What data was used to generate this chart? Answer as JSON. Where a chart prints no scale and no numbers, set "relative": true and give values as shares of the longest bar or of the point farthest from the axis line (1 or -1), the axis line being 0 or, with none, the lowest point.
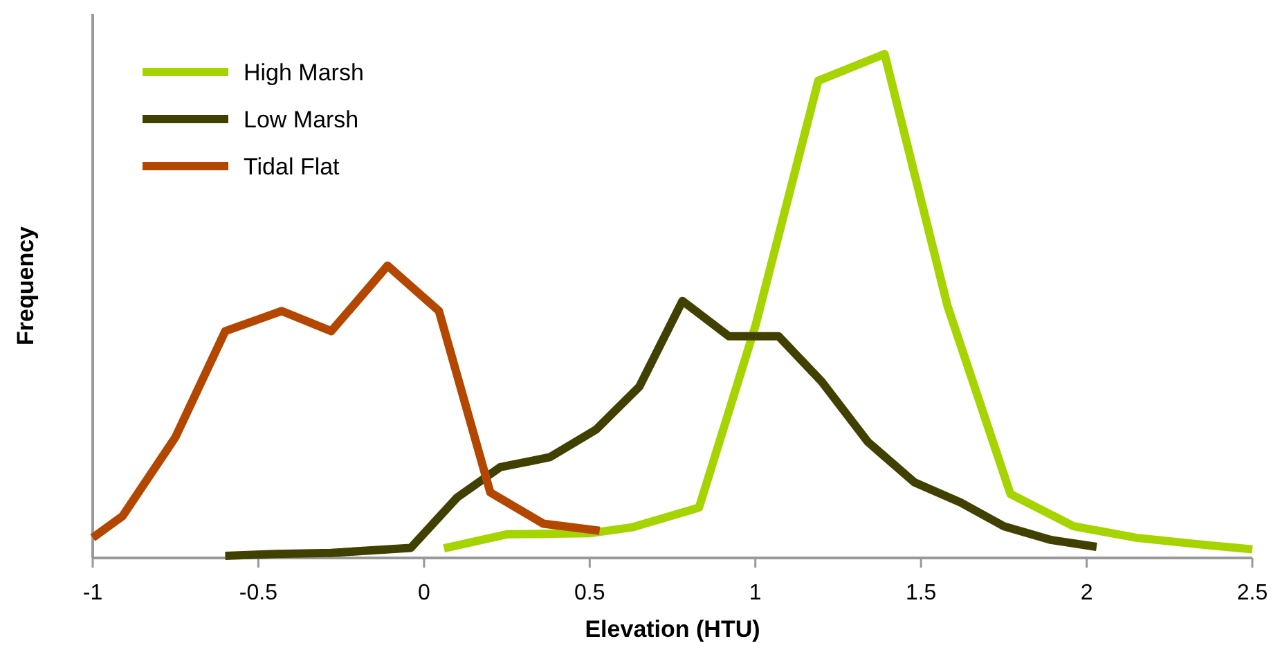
{
  "chart_data": {
    "type": "line",
    "xlabel": "Elevation (HTU)",
    "ylabel": "Frequency",
    "relative": true,
    "xlim": [
      -1,
      2.5
    ],
    "xticks": [
      -1,
      -0.5,
      0,
      0.5,
      1,
      1.5,
      2,
      2.5
    ],
    "legend": "top left",
    "grid": false,
    "marker": "none",
    "line_style": "solid",
    "series": [
      {
        "name": "High Marsh",
        "color": "#a6d400",
        "x": [
          0.06,
          0.25,
          0.5,
          0.63,
          0.83,
          1.0,
          1.19,
          1.39,
          1.58,
          1.77,
          1.96,
          2.15,
          2.34,
          2.5
        ],
        "values": [
          0.019,
          0.047,
          0.049,
          0.061,
          0.1,
          0.46,
          0.947,
          1,
          0.5,
          0.127,
          0.063,
          0.04,
          0.027,
          0.017
        ]
      },
      {
        "name": "Low Marsh",
        "color": "#404000",
        "x": [
          -0.6,
          -0.45,
          -0.28,
          -0.04,
          0.1,
          0.23,
          0.38,
          0.52,
          0.65,
          0.78,
          0.92,
          1.07,
          1.2,
          1.34,
          1.48,
          1.62,
          1.75,
          1.89,
          2.03
        ],
        "values": [
          0.004,
          0.008,
          0.01,
          0.02,
          0.12,
          0.18,
          0.2,
          0.255,
          0.34,
          0.51,
          0.44,
          0.44,
          0.35,
          0.23,
          0.15,
          0.11,
          0.063,
          0.036,
          0.022
        ]
      },
      {
        "name": "Tidal Flat",
        "color": "#b34700",
        "x": [
          -1,
          -0.91,
          -0.75,
          -0.6,
          -0.43,
          -0.28,
          -0.11,
          0.045,
          0.2,
          0.36,
          0.53
        ],
        "values": [
          0.04,
          0.083,
          0.24,
          0.45,
          0.49,
          0.45,
          0.58,
          0.49,
          0.13,
          0.068,
          0.054
        ]
      }
    ]
  }
}
